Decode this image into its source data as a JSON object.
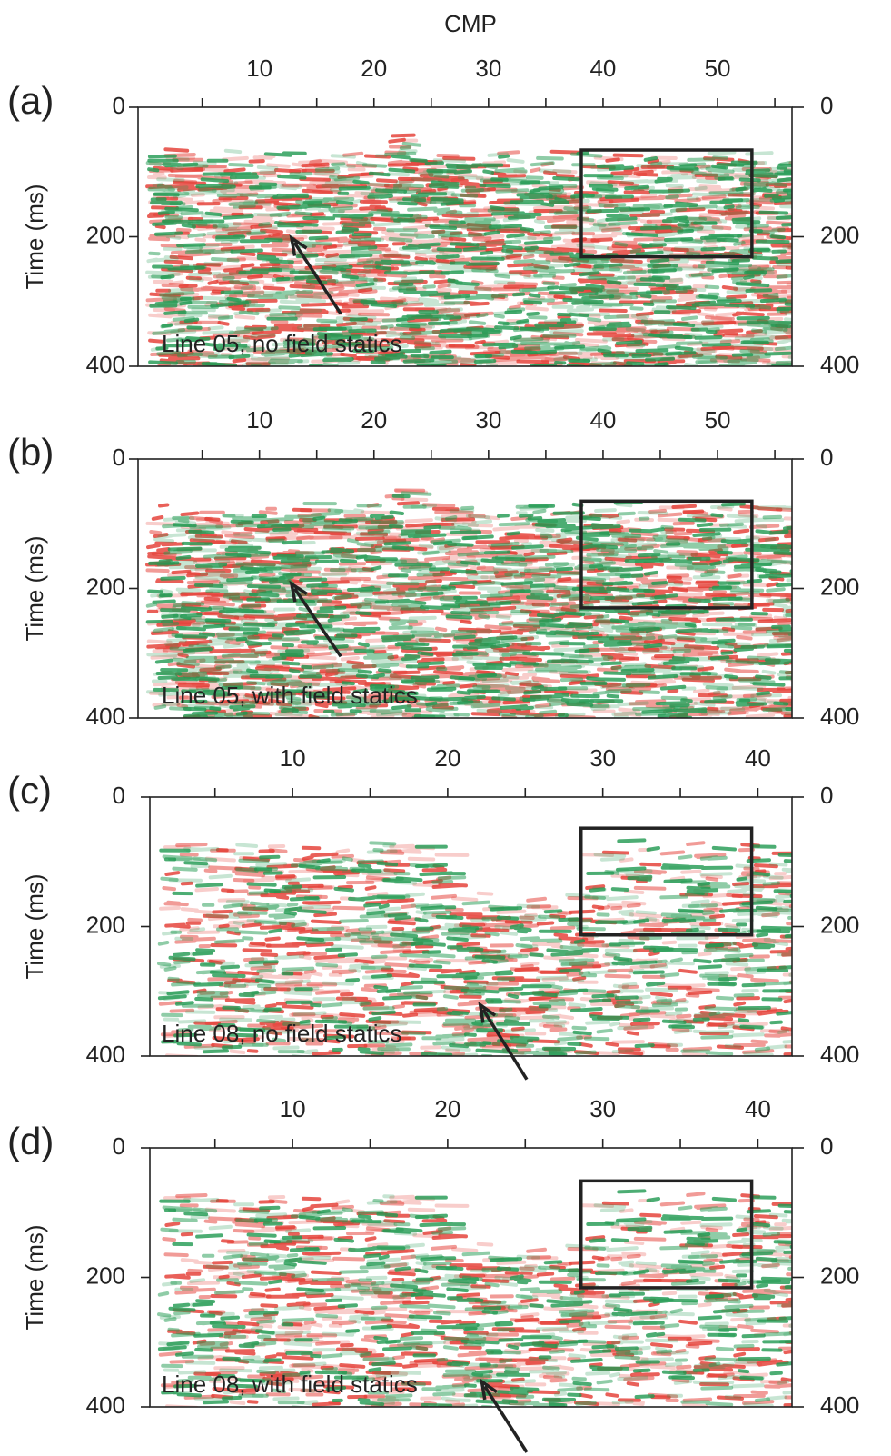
{
  "chart_data": [
    {
      "type": "seismic-section",
      "panel_label": "(a)",
      "xlabel": "CMP",
      "ylabel": "Time (ms)",
      "annotation": "Line 05, no field statics",
      "xlim": [
        -0.6,
        56.5
      ],
      "xticks": [
        10,
        20,
        30,
        40,
        50
      ],
      "minor_xticks": [
        5,
        15,
        25,
        35,
        45,
        55
      ],
      "ylim": [
        0,
        400
      ],
      "yticks": [
        0,
        200,
        400
      ],
      "y_inverted": true,
      "box": {
        "x": [
          38.1,
          53.0
        ],
        "y": [
          66,
          231
        ]
      },
      "arrow": {
        "tail": [
          17.1,
          319
        ],
        "head": [
          12.8,
          202
        ]
      }
    },
    {
      "type": "seismic-section",
      "panel_label": "(b)",
      "ylabel": "Time (ms)",
      "annotation": "Line 05, with field statics",
      "xlim": [
        -0.6,
        56.5
      ],
      "xticks": [
        10,
        20,
        30,
        40,
        50
      ],
      "minor_xticks": [
        5,
        15,
        25,
        35,
        45,
        55
      ],
      "ylim": [
        0,
        400
      ],
      "yticks": [
        0,
        200,
        400
      ],
      "y_inverted": true,
      "box": {
        "x": [
          38.1,
          53.0
        ],
        "y": [
          65,
          230
        ]
      },
      "arrow": {
        "tail": [
          17.1,
          305
        ],
        "head": [
          12.8,
          193
        ]
      }
    },
    {
      "type": "seismic-section",
      "panel_label": "(c)",
      "ylabel": "Time (ms)",
      "annotation": "Line 08, no field statics",
      "xlim": [
        0.8,
        42.2
      ],
      "xticks": [
        10,
        20,
        30,
        40
      ],
      "minor_xticks": [
        5,
        15,
        25,
        35
      ],
      "ylim": [
        0,
        400
      ],
      "yticks": [
        0,
        200,
        400
      ],
      "y_inverted": true,
      "box": {
        "x": [
          28.6,
          39.6
        ],
        "y": [
          48,
          213
        ]
      },
      "arrow": {
        "tail": [
          25.1,
          436
        ],
        "head": [
          22.1,
          321
        ]
      }
    },
    {
      "type": "seismic-section",
      "panel_label": "(d)",
      "ylabel": "Time (ms)",
      "annotation": "Line 08, with field statics",
      "xlim": [
        0.8,
        42.2
      ],
      "xticks": [
        10,
        20,
        30,
        40
      ],
      "minor_xticks": [
        5,
        15,
        25,
        35
      ],
      "ylim": [
        0,
        400
      ],
      "yticks": [
        0,
        200,
        400
      ],
      "y_inverted": true,
      "box": {
        "x": [
          28.6,
          39.6
        ],
        "y": [
          51,
          216
        ]
      },
      "arrow": {
        "tail": [
          25.1,
          470
        ],
        "head": [
          22.2,
          361
        ]
      }
    }
  ]
}
